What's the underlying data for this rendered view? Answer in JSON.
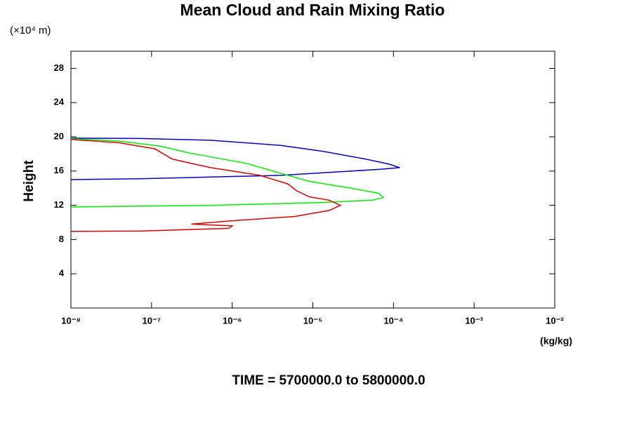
{
  "chart_data": {
    "type": "line",
    "title": "Mean Cloud and Rain Mixing Ratio",
    "y_unit": "(×10⁴ m)",
    "y_label": "Height",
    "x_unit": "(kg/kg)",
    "subtitle": "TIME = 5700000.0 to 5800000.0",
    "xscale": "log",
    "xlim": [
      1e-08,
      0.01
    ],
    "xticks": [
      {
        "value": 1e-08,
        "label": "10⁻⁸"
      },
      {
        "value": 1e-07,
        "label": "10⁻⁷"
      },
      {
        "value": 1e-06,
        "label": "10⁻⁶"
      },
      {
        "value": 1e-05,
        "label": "10⁻⁵"
      },
      {
        "value": 0.0001,
        "label": "10⁻⁴"
      },
      {
        "value": 0.001,
        "label": "10⁻³"
      },
      {
        "value": 0.01,
        "label": "10⁻²"
      }
    ],
    "ylim": [
      0,
      30
    ],
    "yticks": [
      4,
      8,
      12,
      16,
      20,
      24,
      28
    ],
    "series": [
      {
        "color": "#0000cc",
        "x": [
          1e-08,
          7.3e-08,
          5.4e-07,
          4e-06,
          1.35e-05,
          4.5e-05,
          8.9e-05,
          0.00012,
          6.6e-05,
          2e-05,
          4e-06,
          5.4e-07,
          7.3e-08,
          1e-08
        ],
        "y": [
          19.85,
          19.8,
          19.6,
          19.0,
          18.3,
          17.4,
          16.8,
          16.4,
          16.2,
          15.9,
          15.5,
          15.3,
          15.1,
          15.0
        ]
      },
      {
        "color": "#00ee00",
        "x": [
          1e-08,
          4e-08,
          1.3e-07,
          3e-07,
          1.5e-06,
          4.5e-06,
          9e-06,
          3e-05,
          6.6e-05,
          7.5e-05,
          5.5e-05,
          1.1e-05,
          5.4e-07,
          7.3e-08,
          1e-08
        ],
        "y": [
          19.8,
          19.5,
          18.9,
          18.1,
          16.9,
          15.6,
          14.8,
          14.0,
          13.4,
          12.9,
          12.6,
          12.3,
          12.0,
          11.9,
          11.8
        ]
      },
      {
        "color": "#dd0000",
        "x": [
          1e-08,
          4e-08,
          1.1e-07,
          1.8e-07,
          5.4e-07,
          2.2e-06,
          4.9e-06,
          6.3e-06,
          9e-06,
          1.6e-05,
          2.2e-05,
          1.6e-05,
          6e-06,
          1e-06,
          3.1e-07,
          1e-06,
          9e-07,
          7.3e-08,
          1e-08
        ],
        "y": [
          19.7,
          19.3,
          18.6,
          17.4,
          16.4,
          15.5,
          14.5,
          13.7,
          13.0,
          12.6,
          12.0,
          11.4,
          10.7,
          10.2,
          9.8,
          9.6,
          9.3,
          9.0,
          8.95
        ]
      }
    ]
  }
}
